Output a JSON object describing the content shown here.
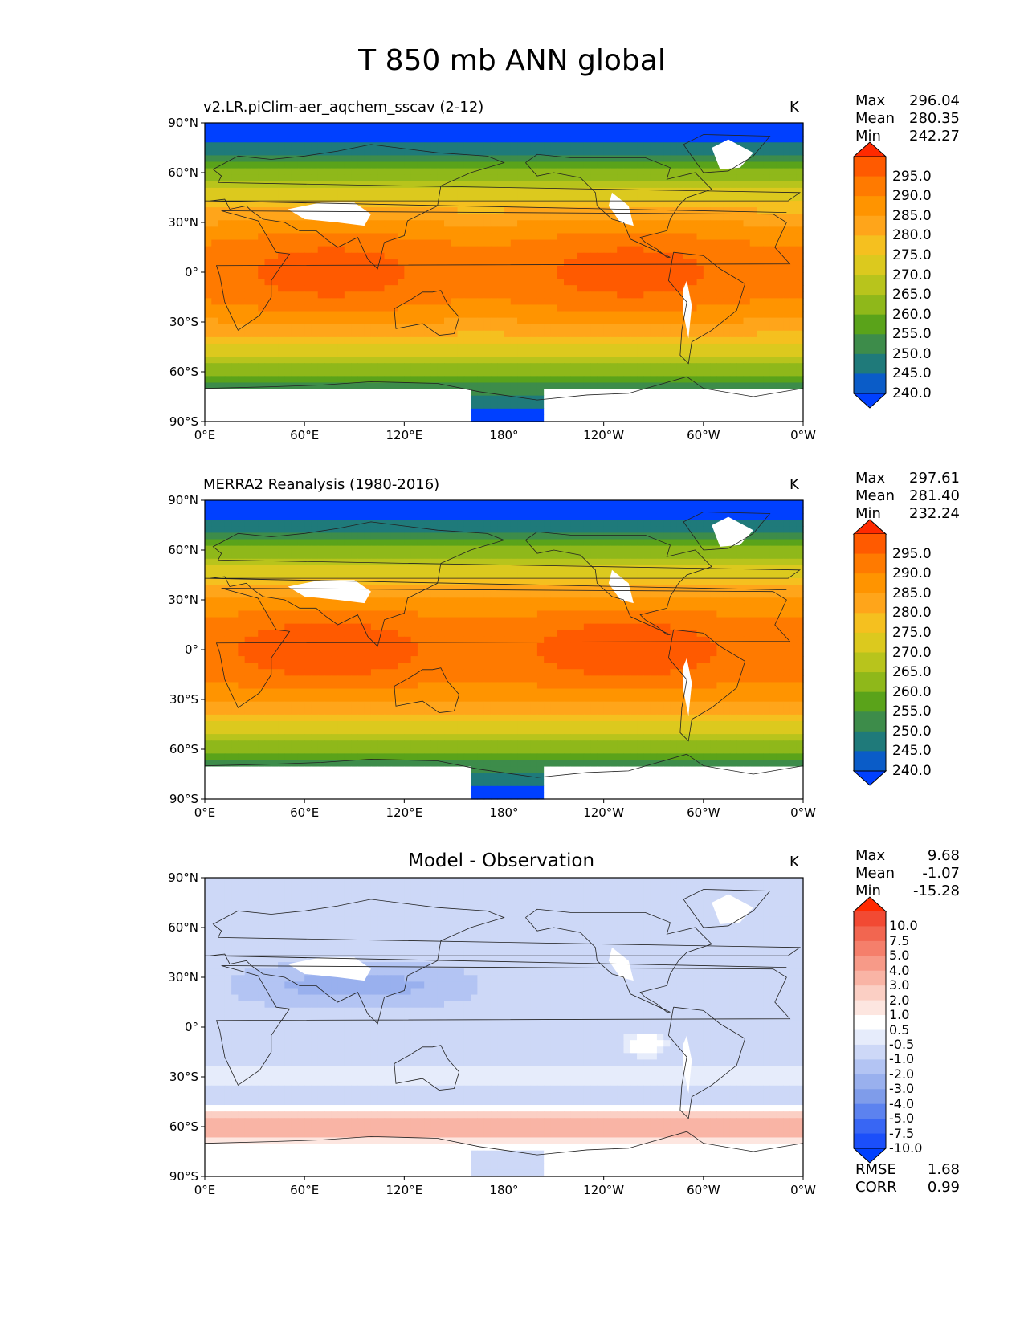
{
  "suptitle": "T 850 mb ANN global",
  "xticks": [
    "0°E",
    "60°E",
    "120°E",
    "180°",
    "120°W",
    "60°W",
    "0°W"
  ],
  "yticks": [
    "90°N",
    "60°N",
    "30°N",
    "0°",
    "30°S",
    "60°S",
    "90°S"
  ],
  "panels": [
    {
      "title": "v2.LR.piClim-aer_aqchem_sscav (2-12)",
      "units": "K",
      "stats": [
        {
          "label": "Max",
          "value": "296.04"
        },
        {
          "label": "Mean",
          "value": "280.35"
        },
        {
          "label": "Min",
          "value": "242.27"
        }
      ],
      "colorbar": {
        "labels": [
          "295.0",
          "290.0",
          "285.0",
          "280.0",
          "275.0",
          "270.0",
          "265.0",
          "260.0",
          "255.0",
          "250.0",
          "245.0",
          "240.0"
        ],
        "colors": [
          "#ff2a00",
          "#ff5a00",
          "#ff7a00",
          "#ff9400",
          "#ffa51a",
          "#f5c01f",
          "#dcc91e",
          "#b8c41c",
          "#8fb81a",
          "#5aa31a",
          "#3d8c4a",
          "#1f7a7a",
          "#0a5cc8",
          "#0040ff"
        ]
      }
    },
    {
      "title": "MERRA2 Reanalysis (1980-2016)",
      "units": "K",
      "stats": [
        {
          "label": "Max",
          "value": "297.61"
        },
        {
          "label": "Mean",
          "value": "281.40"
        },
        {
          "label": "Min",
          "value": "232.24"
        }
      ],
      "colorbar": {
        "labels": [
          "295.0",
          "290.0",
          "285.0",
          "280.0",
          "275.0",
          "270.0",
          "265.0",
          "260.0",
          "255.0",
          "250.0",
          "245.0",
          "240.0"
        ],
        "colors": [
          "#ff2a00",
          "#ff5a00",
          "#ff7a00",
          "#ff9400",
          "#ffa51a",
          "#f5c01f",
          "#dcc91e",
          "#b8c41c",
          "#8fb81a",
          "#5aa31a",
          "#3d8c4a",
          "#1f7a7a",
          "#0a5cc8",
          "#0040ff"
        ]
      }
    },
    {
      "title": "Model - Observation",
      "units": "K",
      "stats": [
        {
          "label": "Max",
          "value": "9.68"
        },
        {
          "label": "Mean",
          "value": "-1.07"
        },
        {
          "label": "Min",
          "value": "-15.28"
        }
      ],
      "colorbar": {
        "labels": [
          "10.0",
          "7.5",
          "5.0",
          "4.0",
          "3.0",
          "2.0",
          "1.0",
          "0.5",
          "-0.5",
          "-1.0",
          "-2.0",
          "-3.0",
          "-4.0",
          "-5.0",
          "-7.5",
          "-10.0"
        ],
        "colors": [
          "#ff2a00",
          "#f24a33",
          "#f26650",
          "#f57f6b",
          "#f79a88",
          "#f9b4a5",
          "#fbcfc4",
          "#fde6e0",
          "#ffffff",
          "#e6ecfb",
          "#cdd8f7",
          "#b3c4f3",
          "#99b0ee",
          "#7f9cea",
          "#5c82ef",
          "#3866f4",
          "#1b4ffa",
          "#0040ff"
        ]
      },
      "rmse": [
        {
          "label": "RMSE",
          "value": "1.68"
        },
        {
          "label": "CORR",
          "value": "0.99"
        }
      ]
    }
  ]
}
